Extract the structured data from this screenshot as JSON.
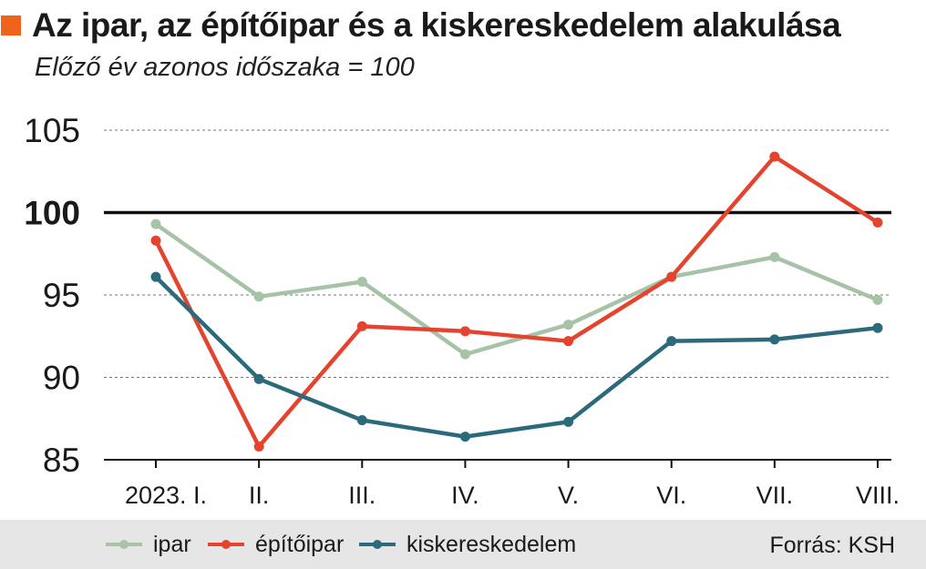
{
  "header": {
    "title": "Az ipar, az építőipar és a kiskereskedelem alakulása",
    "subtitle": "Előző év azonos időszaka = 100",
    "accent_color": "#f0631d"
  },
  "chart_data": {
    "type": "line",
    "categories": [
      "2023. I.",
      "II.",
      "III.",
      "IV.",
      "V.",
      "VI.",
      "VII.",
      "VIII."
    ],
    "ylim": [
      85,
      105
    ],
    "yticks": [
      85,
      90,
      95,
      100,
      105
    ],
    "reference_line": 100,
    "grid": true,
    "legend_position": "bottom",
    "series": [
      {
        "name": "ipar",
        "color": "#a6c3a8",
        "values": [
          99.3,
          94.9,
          95.8,
          91.4,
          93.2,
          96.1,
          97.3,
          94.7
        ]
      },
      {
        "name": "építőipar",
        "color": "#e5432e",
        "values": [
          98.3,
          85.8,
          93.1,
          92.8,
          92.2,
          96.1,
          103.4,
          99.4
        ]
      },
      {
        "name": "kiskereskedelem",
        "color": "#2a6a7b",
        "values": [
          96.1,
          89.9,
          87.4,
          86.4,
          87.3,
          92.2,
          92.3,
          93.0
        ]
      }
    ]
  },
  "footer": {
    "source": "Forrás: KSH"
  }
}
